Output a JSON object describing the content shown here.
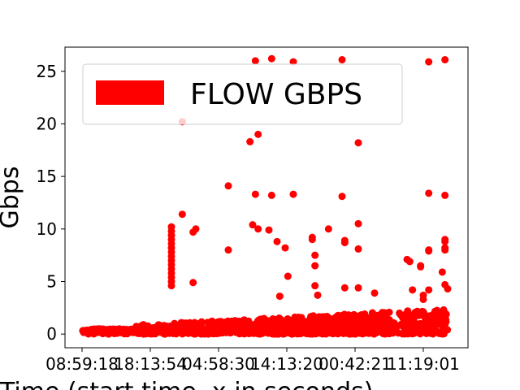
{
  "chart_data": {
    "type": "scatter",
    "title": "",
    "xlabel": "Time (start time, x in seconds)",
    "ylabel": "Gbps",
    "x_tick_labels": [
      "08:59:18",
      "18:13:54",
      "04:58:30",
      "14:13:20",
      "00:42:21",
      "11:19:01"
    ],
    "y_ticks": [
      0,
      5,
      10,
      15,
      20,
      25
    ],
    "y_tick_labels": [
      "0",
      "5",
      "10",
      "15",
      "20",
      "25"
    ],
    "ylim": [
      -1.3,
      27.3
    ],
    "grid": false,
    "legend": {
      "position": "top-left",
      "entries": [
        "FLOW GBPS"
      ]
    },
    "series": [
      {
        "name": "FLOW GBPS",
        "color": "#ff0000",
        "outliers": [
          [
            0.33,
            10.2
          ],
          [
            0.33,
            9.8
          ],
          [
            0.33,
            9.4
          ],
          [
            0.33,
            9.0
          ],
          [
            0.33,
            8.6
          ],
          [
            0.33,
            8.2
          ],
          [
            0.33,
            7.8
          ],
          [
            0.33,
            7.4
          ],
          [
            0.33,
            7.0
          ],
          [
            0.33,
            6.6
          ],
          [
            0.33,
            6.2
          ],
          [
            0.33,
            5.8
          ],
          [
            0.33,
            5.4
          ],
          [
            0.33,
            5.0
          ],
          [
            0.33,
            4.6
          ],
          [
            0.37,
            20.2
          ],
          [
            0.37,
            11.4
          ],
          [
            0.41,
            9.7
          ],
          [
            0.42,
            10.0
          ],
          [
            0.41,
            4.9
          ],
          [
            0.54,
            14.1
          ],
          [
            0.54,
            8.0
          ],
          [
            0.62,
            18.3
          ],
          [
            0.63,
            10.4
          ],
          [
            0.64,
            26.0
          ],
          [
            0.65,
            19.0
          ],
          [
            0.64,
            13.3
          ],
          [
            0.65,
            10.0
          ],
          [
            0.69,
            9.9
          ],
          [
            0.7,
            26.2
          ],
          [
            0.7,
            13.2
          ],
          [
            0.72,
            8.8
          ],
          [
            0.73,
            3.6
          ],
          [
            0.75,
            8.2
          ],
          [
            0.76,
            5.5
          ],
          [
            0.78,
            25.9
          ],
          [
            0.78,
            13.3
          ],
          [
            0.85,
            9.2
          ],
          [
            0.85,
            9.0
          ],
          [
            0.86,
            7.5
          ],
          [
            0.86,
            6.5
          ],
          [
            0.86,
            4.6
          ],
          [
            0.87,
            3.7
          ],
          [
            0.91,
            10.0
          ],
          [
            0.96,
            26.1
          ],
          [
            0.96,
            13.1
          ],
          [
            0.97,
            8.9
          ],
          [
            0.97,
            8.7
          ],
          [
            0.97,
            4.4
          ],
          [
            1.02,
            18.2
          ],
          [
            1.02,
            10.5
          ],
          [
            1.02,
            8.1
          ],
          [
            1.02,
            4.4
          ],
          [
            1.08,
            3.9
          ],
          [
            1.2,
            7.1
          ],
          [
            1.21,
            6.9
          ],
          [
            1.22,
            4.2
          ],
          [
            1.25,
            6.5
          ],
          [
            1.25,
            6.4
          ],
          [
            1.26,
            3.7
          ],
          [
            1.26,
            3.3
          ],
          [
            1.28,
            25.9
          ],
          [
            1.28,
            13.4
          ],
          [
            1.28,
            8.0
          ],
          [
            1.28,
            7.9
          ],
          [
            1.28,
            4.2
          ],
          [
            1.33,
            5.9
          ],
          [
            1.34,
            26.1
          ],
          [
            1.34,
            13.2
          ],
          [
            1.34,
            9.0
          ],
          [
            1.34,
            8.8
          ],
          [
            1.34,
            8.2
          ],
          [
            1.34,
            8.0
          ],
          [
            1.34,
            4.7
          ],
          [
            1.35,
            4.3
          ]
        ]
      }
    ]
  }
}
